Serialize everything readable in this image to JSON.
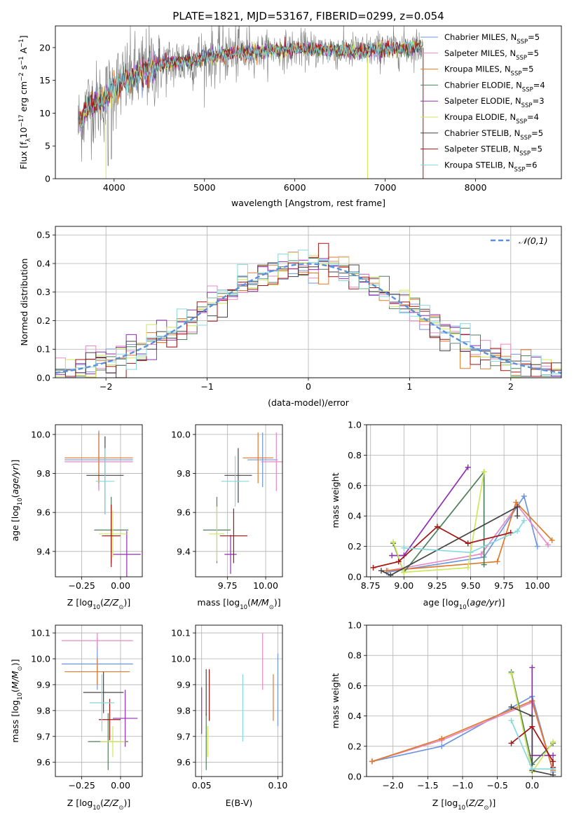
{
  "figure": {
    "title": "PLATE=1821, MJD=53167, FIBERID=0299, z=0.054"
  },
  "colors": {
    "Chabrier MILES": "#6f95e0",
    "Salpeter MILES": "#e58ac4",
    "Kroupa MILES": "#e07a2a",
    "Chabrier ELODIE": "#4f7f5a",
    "Salpeter ELODIE": "#8f2fb0",
    "Kroupa ELODIE": "#cfe65a",
    "Chabrier STELIB": "#454545",
    "Salpeter STELIB": "#a31515",
    "Kroupa STELIB": "#86d9dc",
    "spectrum": "#7a7a7a",
    "normal": "#5b8fd9"
  },
  "chart_data": [
    {
      "id": "spectrum",
      "type": "line",
      "title": "PLATE=1821, MJD=53167, FIBERID=0299, z=0.054",
      "xlabel": "wavelength [Angstrom, rest frame]",
      "ylabel": "Flux [f_λ 10^-17 erg cm^-2 s^-1 A^-1]",
      "xlim": [
        3350,
        8950
      ],
      "ylim": [
        0,
        23.3
      ],
      "xticks": [
        4000,
        5000,
        6000,
        7000,
        8000
      ],
      "yticks": [
        0,
        5,
        10,
        15,
        20
      ],
      "grid": false,
      "legend_position": "upper right",
      "series": [
        {
          "name": "Chabrier MILES, N_SSP=5",
          "key": "Chabrier MILES"
        },
        {
          "name": "Salpeter MILES, N_SSP=5",
          "key": "Salpeter MILES"
        },
        {
          "name": "Kroupa MILES, N_SSP=5",
          "key": "Kroupa MILES"
        },
        {
          "name": "Chabrier ELODIE, N_SSP=4",
          "key": "Chabrier ELODIE"
        },
        {
          "name": "Salpeter ELODIE, N_SSP=3",
          "key": "Salpeter ELODIE"
        },
        {
          "name": "Kroupa ELODIE, N_SSP=4",
          "key": "Kroupa ELODIE"
        },
        {
          "name": "Chabrier STELIB, N_SSP=5",
          "key": "Chabrier STELIB"
        },
        {
          "name": "Salpeter STELIB, N_SSP=5",
          "key": "Salpeter STELIB"
        },
        {
          "name": "Kroupa STELIB, N_SSP=6",
          "key": "Kroupa STELIB"
        }
      ],
      "continuum": {
        "x": [
          3600,
          3700,
          3800,
          3900,
          4000,
          4200,
          4400,
          4600,
          4800,
          5000,
          5200,
          5500,
          5800,
          6100,
          6400,
          6700,
          7000,
          7400
        ],
        "y": [
          8,
          11,
          11.5,
          12,
          14,
          15.5,
          17,
          17.5,
          18,
          18.5,
          19,
          19.3,
          19.6,
          19.8,
          19.6,
          19.4,
          19.7,
          20.2
        ]
      }
    },
    {
      "id": "residuals",
      "type": "step",
      "xlabel": "(data-model)/error",
      "ylabel": "Normed distribution",
      "xlim": [
        -2.5,
        2.5
      ],
      "ylim": [
        0,
        0.53
      ],
      "xticks": [
        -2,
        -1,
        0,
        1,
        2
      ],
      "yticks": [
        0.0,
        0.1,
        0.2,
        0.3,
        0.4,
        0.5
      ],
      "grid": true,
      "legend": "𝒩(0,1)",
      "legend_position": "upper right"
    },
    {
      "id": "age_vs_Z",
      "type": "errorbar",
      "xlabel": "Z [log10(Z/Z_sun)]",
      "ylabel": "age [log10(age/yr)]",
      "xlim": [
        -0.42,
        0.14
      ],
      "ylim": [
        9.27,
        10.05
      ],
      "xticks": [
        -0.25,
        0.0
      ],
      "ytick_labels": [
        "9.4",
        "9.6",
        "9.8",
        "10.0"
      ],
      "grid": true,
      "points": [
        {
          "key": "Chabrier MILES",
          "x": -0.14,
          "y": 9.87,
          "xerr": 0.22,
          "yerr": 0.15
        },
        {
          "key": "Salpeter MILES",
          "x": -0.14,
          "y": 9.86,
          "xerr": 0.22,
          "yerr": 0.15
        },
        {
          "key": "Kroupa MILES",
          "x": -0.14,
          "y": 9.88,
          "xerr": 0.22,
          "yerr": 0.13
        },
        {
          "key": "Chabrier ELODIE",
          "x": -0.06,
          "y": 9.51,
          "xerr": 0.11,
          "yerr": 0.17
        },
        {
          "key": "Salpeter ELODIE",
          "x": 0.04,
          "y": 9.385,
          "xerr": 0.09,
          "yerr": 0.12
        },
        {
          "key": "Kroupa ELODIE",
          "x": -0.05,
          "y": 9.49,
          "xerr": 0.09,
          "yerr": 0.12
        },
        {
          "key": "Chabrier STELIB",
          "x": -0.1,
          "y": 9.79,
          "xerr": 0.12,
          "yerr": 0.2
        },
        {
          "key": "Salpeter STELIB",
          "x": -0.06,
          "y": 9.48,
          "xerr": 0.06,
          "yerr": 0.16
        },
        {
          "key": "Kroupa STELIB",
          "x": -0.1,
          "y": 9.76,
          "xerr": 0.06,
          "yerr": 0.17
        }
      ]
    },
    {
      "id": "age_vs_mass",
      "type": "errorbar",
      "xlabel": "mass [log10(M/M_sun)]",
      "ylabel": "",
      "xlim": [
        9.54,
        10.11
      ],
      "ylim": [
        9.27,
        10.05
      ],
      "xticks": [
        9.75,
        10.0
      ],
      "ytick_labels": [
        "9.4",
        "9.6",
        "9.8",
        "10.0"
      ],
      "grid": true,
      "points": [
        {
          "key": "Chabrier MILES",
          "x": 9.98,
          "y": 9.87,
          "xerr": 0.1,
          "yerr": 0.14
        },
        {
          "key": "Salpeter MILES",
          "x": 10.07,
          "y": 9.86,
          "xerr": 0.1,
          "yerr": 0.15
        },
        {
          "key": "Kroupa MILES",
          "x": 9.95,
          "y": 9.88,
          "xerr": 0.1,
          "yerr": 0.13
        },
        {
          "key": "Chabrier ELODIE",
          "x": 9.68,
          "y": 9.51,
          "xerr": 0.09,
          "yerr": 0.17
        },
        {
          "key": "Salpeter ELODIE",
          "x": 9.77,
          "y": 9.385,
          "xerr": 0.04,
          "yerr": 0.1
        },
        {
          "key": "Kroupa ELODIE",
          "x": 9.68,
          "y": 9.49,
          "xerr": 0.05,
          "yerr": 0.14
        },
        {
          "key": "Chabrier STELIB",
          "x": 9.82,
          "y": 9.79,
          "xerr": 0.09,
          "yerr": 0.14
        },
        {
          "key": "Salpeter STELIB",
          "x": 9.79,
          "y": 9.48,
          "xerr": 0.09,
          "yerr": 0.14
        },
        {
          "key": "Kroupa STELIB",
          "x": 9.8,
          "y": 9.76,
          "xerr": 0.09,
          "yerr": 0.13
        }
      ]
    },
    {
      "id": "weight_vs_age",
      "type": "line",
      "xlabel": "age [log10(age/yr)]",
      "ylabel": "mass weight",
      "xlim": [
        8.72,
        10.18
      ],
      "ylim": [
        0,
        1.0
      ],
      "xticks": [
        8.75,
        9.0,
        9.25,
        9.5,
        9.75,
        10.0
      ],
      "yticks": [
        0.0,
        0.2,
        0.4,
        0.6,
        0.8,
        1.0
      ],
      "grid": true,
      "series": [
        {
          "key": "Chabrier MILES",
          "x": [
            8.87,
            9.6,
            9.9,
            10.0
          ],
          "y": [
            0.03,
            0.13,
            0.53,
            0.2
          ]
        },
        {
          "key": "Salpeter MILES",
          "x": [
            8.88,
            9.58,
            9.85,
            10.08
          ],
          "y": [
            0.04,
            0.15,
            0.47,
            0.21
          ]
        },
        {
          "key": "Kroupa MILES",
          "x": [
            8.87,
            9.7,
            9.84,
            10.11
          ],
          "y": [
            0.04,
            0.1,
            0.49,
            0.24
          ]
        },
        {
          "key": "Chabrier ELODIE",
          "x": [
            8.92,
            9.0,
            9.6,
            9.6
          ],
          "y": [
            0.22,
            0.03,
            0.69,
            0.08
          ]
        },
        {
          "key": "Salpeter ELODIE",
          "x": [
            8.91,
            9.0,
            9.48
          ],
          "y": [
            0.14,
            0.14,
            0.72
          ]
        },
        {
          "key": "Kroupa ELODIE",
          "x": [
            8.92,
            9.0,
            9.48,
            9.6
          ],
          "y": [
            0.23,
            0.03,
            0.06,
            0.69
          ]
        },
        {
          "key": "Chabrier STELIB",
          "x": [
            8.83,
            8.9,
            9.85,
            9.85
          ],
          "y": [
            0.04,
            0.01,
            0.46,
            0.4
          ]
        },
        {
          "key": "Salpeter STELIB",
          "x": [
            8.77,
            8.96,
            9.25,
            9.48,
            9.8
          ],
          "y": [
            0.06,
            0.1,
            0.33,
            0.22,
            0.29
          ]
        },
        {
          "key": "Kroupa STELIB",
          "x": [
            9.0,
            9.5,
            9.85,
            9.9
          ],
          "y": [
            0.19,
            0.16,
            0.3,
            0.37
          ]
        }
      ]
    },
    {
      "id": "mass_vs_Z",
      "type": "errorbar",
      "xlabel": "Z [log10(Z/Z_sun)]",
      "ylabel": "mass [log10(M/M_sun)]",
      "xlim": [
        -0.42,
        0.14
      ],
      "ylim": [
        9.545,
        10.13
      ],
      "xticks": [
        -0.25,
        0.0
      ],
      "ytick_labels": [
        "9.6",
        "9.7",
        "9.8",
        "9.9",
        "10.0",
        "10.1"
      ],
      "grid": true,
      "points": [
        {
          "key": "Chabrier MILES",
          "x": -0.15,
          "y": 9.98,
          "xerr": 0.23,
          "yerr": 0.1
        },
        {
          "key": "Salpeter MILES",
          "x": -0.15,
          "y": 10.07,
          "xerr": 0.23,
          "yerr": 0.03
        },
        {
          "key": "Kroupa MILES",
          "x": -0.15,
          "y": 9.95,
          "xerr": 0.21,
          "yerr": 0.05
        },
        {
          "key": "Chabrier ELODIE",
          "x": -0.08,
          "y": 9.68,
          "xerr": 0.13,
          "yerr": 0.11
        },
        {
          "key": "Salpeter ELODIE",
          "x": 0.03,
          "y": 9.77,
          "xerr": 0.08,
          "yerr": 0.11
        },
        {
          "key": "Kroupa ELODIE",
          "x": -0.05,
          "y": 9.68,
          "xerr": 0.08,
          "yerr": 0.06
        },
        {
          "key": "Chabrier STELIB",
          "x": -0.11,
          "y": 9.87,
          "xerr": 0.13,
          "yerr": 0.08
        },
        {
          "key": "Salpeter STELIB",
          "x": -0.07,
          "y": 9.765,
          "xerr": 0.07,
          "yerr": 0.08
        },
        {
          "key": "Kroupa STELIB",
          "x": -0.12,
          "y": 9.83,
          "xerr": 0.08,
          "yerr": 0.11
        }
      ]
    },
    {
      "id": "mass_vs_ebv",
      "type": "errorbar",
      "xlabel": "E(B-V)",
      "ylabel": "",
      "xlim": [
        0.046,
        0.103
      ],
      "ylim": [
        9.545,
        10.13
      ],
      "xtick_labels": [
        "0.05",
        "0.10"
      ],
      "ytick_labels": [
        "9.6",
        "9.7",
        "9.8",
        "9.9",
        "10.0",
        "10.1"
      ],
      "grid": true,
      "points": [
        {
          "key": "Chabrier MILES",
          "x": 0.1,
          "y": 9.88,
          "xerr": 0,
          "yerr": 0.14
        },
        {
          "key": "Salpeter MILES",
          "x": 0.09,
          "y": 9.99,
          "xerr": 0,
          "yerr": 0.11
        },
        {
          "key": "Kroupa MILES",
          "x": 0.097,
          "y": 9.85,
          "xerr": 0,
          "yerr": 0.09
        },
        {
          "key": "Chabrier ELODIE",
          "x": 0.053,
          "y": 9.68,
          "xerr": 0,
          "yerr": 0.11
        },
        {
          "key": "Salpeter ELODIE",
          "x": 0.05,
          "y": 9.8,
          "xerr": 0,
          "yerr": 0.09
        },
        {
          "key": "Kroupa ELODIE",
          "x": 0.054,
          "y": 9.68,
          "xerr": 0,
          "yerr": 0.06
        },
        {
          "key": "Chabrier STELIB",
          "x": 0.053,
          "y": 9.87,
          "xerr": 0,
          "yerr": 0.09
        },
        {
          "key": "Salpeter STELIB",
          "x": 0.055,
          "y": 9.86,
          "xerr": 0,
          "yerr": 0.1
        },
        {
          "key": "Kroupa STELIB",
          "x": 0.077,
          "y": 9.81,
          "xerr": 0,
          "yerr": 0.13
        }
      ]
    },
    {
      "id": "weight_vs_Z",
      "type": "line",
      "xlabel": "Z [log10(Z/Z_sun)]",
      "ylabel": "mass weight",
      "xlim": [
        -2.38,
        0.42
      ],
      "ylim": [
        0,
        1.0
      ],
      "xticks": [
        -2.0,
        -1.5,
        -1.0,
        -0.5,
        0.0
      ],
      "yticks": [
        0.0,
        0.2,
        0.4,
        0.6,
        0.8,
        1.0
      ],
      "grid": true,
      "series": [
        {
          "key": "Chabrier MILES",
          "x": [
            -2.3,
            -1.3,
            0.0,
            0.3
          ],
          "y": [
            0.1,
            0.2,
            0.53,
            0.03
          ]
        },
        {
          "key": "Salpeter MILES",
          "x": [
            -2.3,
            -1.3,
            0.0,
            0.3
          ],
          "y": [
            0.1,
            0.24,
            0.49,
            0.04
          ]
        },
        {
          "key": "Kroupa MILES",
          "x": [
            -2.3,
            -1.3,
            0.0,
            0.3
          ],
          "y": [
            0.1,
            0.25,
            0.5,
            0.04
          ]
        },
        {
          "key": "Chabrier ELODIE",
          "x": [
            -0.3,
            0.0,
            0.3
          ],
          "y": [
            0.69,
            0.08,
            0.22
          ]
        },
        {
          "key": "Salpeter ELODIE",
          "x": [
            0.0,
            0.0,
            0.3
          ],
          "y": [
            0.72,
            0.14,
            0.14
          ]
        },
        {
          "key": "Kroupa ELODIE",
          "x": [
            -0.3,
            0.0,
            0.3
          ],
          "y": [
            0.68,
            0.03,
            0.23
          ]
        },
        {
          "key": "Chabrier STELIB",
          "x": [
            -0.3,
            0.0,
            0.0,
            0.3
          ],
          "y": [
            0.46,
            0.4,
            0.04,
            0.01
          ]
        },
        {
          "key": "Salpeter STELIB",
          "x": [
            -0.3,
            0.0,
            0.3,
            0.3
          ],
          "y": [
            0.22,
            0.33,
            0.1,
            0.06
          ]
        },
        {
          "key": "Kroupa STELIB",
          "x": [
            -0.3,
            0.0,
            0.3
          ],
          "y": [
            0.37,
            0.05,
            0.05
          ]
        }
      ]
    }
  ]
}
